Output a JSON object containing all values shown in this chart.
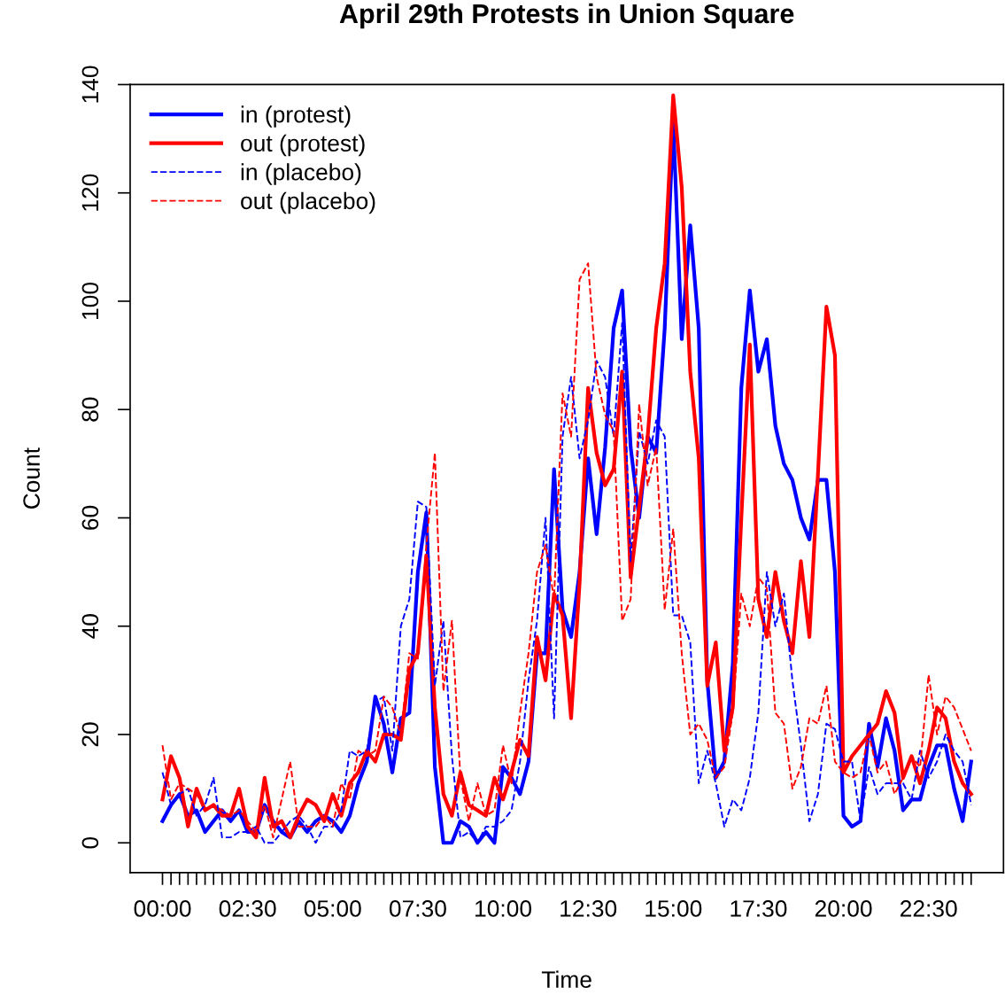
{
  "chart_data": {
    "type": "line",
    "title": "April 29th Protests in Union Square",
    "xlabel": "Time",
    "ylabel": "Count",
    "x": [
      0,
      0.25,
      0.5,
      0.75,
      1,
      1.25,
      1.5,
      1.75,
      2,
      2.25,
      2.5,
      2.75,
      3,
      3.25,
      3.5,
      3.75,
      4,
      4.25,
      4.5,
      4.75,
      5,
      5.25,
      5.5,
      5.75,
      6,
      6.25,
      6.5,
      6.75,
      7,
      7.25,
      7.5,
      7.75,
      8,
      8.25,
      8.5,
      8.75,
      9,
      9.25,
      9.5,
      9.75,
      10,
      10.25,
      10.5,
      10.75,
      11,
      11.25,
      11.5,
      11.75,
      12,
      12.25,
      12.5,
      12.75,
      13,
      13.25,
      13.5,
      13.75,
      14,
      14.25,
      14.5,
      14.75,
      15,
      15.25,
      15.5,
      15.75,
      16,
      16.25,
      16.5,
      16.75,
      17,
      17.25,
      17.5,
      17.75,
      18,
      18.25,
      18.5,
      18.75,
      19,
      19.25,
      19.5,
      19.75,
      20,
      20.25,
      20.5,
      20.75,
      21,
      21.25,
      21.5,
      21.75,
      22,
      22.25,
      22.5,
      22.75,
      23,
      23.25,
      23.5,
      23.75
    ],
    "series": [
      {
        "name": "in (protest)",
        "color": "#0000ff",
        "line_style": "solid",
        "values": [
          4,
          7,
          9,
          5,
          6,
          2,
          4,
          6,
          4,
          6,
          2,
          2,
          7,
          4,
          2,
          1,
          4,
          2,
          4,
          5,
          4,
          2,
          5,
          11,
          15,
          27,
          22,
          13,
          23,
          24,
          50,
          61,
          14,
          0,
          0,
          4,
          3,
          0,
          2,
          0,
          14,
          12,
          9,
          15,
          35,
          35,
          69,
          43,
          38,
          50,
          71,
          57,
          73,
          95,
          102,
          73,
          60,
          75,
          72,
          95,
          133,
          93,
          114,
          95,
          30,
          12,
          15,
          33,
          84,
          102,
          87,
          93,
          77,
          70,
          67,
          60,
          56,
          67,
          67,
          50,
          5,
          3,
          4,
          22,
          14,
          23,
          17,
          6,
          8,
          8,
          14,
          18,
          18,
          10,
          4,
          15
        ]
      },
      {
        "name": "out (protest)",
        "color": "#ff0000",
        "line_style": "solid",
        "values": [
          8,
          16,
          12,
          3,
          10,
          6,
          7,
          5,
          5,
          10,
          3,
          1,
          12,
          3,
          4,
          1,
          5,
          8,
          7,
          4,
          9,
          5,
          11,
          13,
          17,
          15,
          20,
          20,
          19,
          32,
          35,
          53,
          25,
          9,
          5,
          13,
          7,
          6,
          5,
          12,
          8,
          13,
          19,
          16,
          38,
          30,
          46,
          42,
          23,
          48,
          84,
          72,
          66,
          69,
          87,
          49,
          62,
          75,
          95,
          107,
          138,
          121,
          87,
          71,
          29,
          37,
          17,
          25,
          60,
          92,
          45,
          38,
          50,
          41,
          35,
          52,
          38,
          68,
          99,
          90,
          13,
          16,
          18,
          20,
          22,
          28,
          24,
          12,
          16,
          11,
          17,
          25,
          23,
          15,
          11,
          9
        ]
      },
      {
        "name": "in (placebo)",
        "color": "#0000ff",
        "line_style": "dashed",
        "values": [
          13,
          7,
          9,
          10,
          5,
          7,
          12,
          1,
          1,
          2,
          2,
          3,
          0,
          0,
          2,
          4,
          5,
          3,
          0,
          3,
          3,
          6,
          17,
          16,
          17,
          26,
          27,
          17,
          40,
          45,
          63,
          62,
          29,
          41,
          16,
          1,
          2,
          0,
          3,
          3,
          4,
          6,
          15,
          30,
          41,
          60,
          23,
          75,
          86,
          71,
          78,
          89,
          86,
          75,
          96,
          52,
          76,
          70,
          78,
          75,
          42,
          42,
          37,
          11,
          17,
          11,
          3,
          8,
          6,
          12,
          24,
          50,
          40,
          46,
          30,
          18,
          4,
          9,
          22,
          21,
          15,
          15,
          4,
          14,
          9,
          11,
          11,
          11,
          8,
          17,
          12,
          15,
          20,
          17,
          15,
          7
        ]
      },
      {
        "name": "out (placebo)",
        "color": "#ff0000",
        "line_style": "dashed",
        "values": [
          18,
          8,
          11,
          10,
          9,
          6,
          7,
          6,
          5,
          6,
          4,
          2,
          7,
          1,
          8,
          15,
          3,
          3,
          3,
          5,
          3,
          11,
          8,
          17,
          16,
          17,
          27,
          25,
          20,
          35,
          34,
          55,
          72,
          28,
          41,
          12,
          4,
          11,
          5,
          6,
          18,
          11,
          24,
          35,
          50,
          55,
          45,
          83,
          75,
          104,
          107,
          86,
          79,
          76,
          41,
          45,
          81,
          66,
          73,
          43,
          58,
          35,
          20,
          22,
          19,
          12,
          14,
          24,
          46,
          40,
          49,
          47,
          24,
          22,
          10,
          14,
          23,
          22,
          29,
          15,
          13,
          12,
          13,
          20,
          13,
          15,
          9,
          12,
          16,
          14,
          31,
          20,
          27,
          25,
          21,
          17
        ]
      }
    ],
    "xlim": [
      -0.95,
      24.7
    ],
    "ylim": [
      -5.5,
      140
    ],
    "xticks": [
      {
        "value": 0,
        "label": "00:00"
      },
      {
        "value": 0.25,
        "label": null
      },
      {
        "value": 0.5,
        "label": null
      },
      {
        "value": 0.75,
        "label": null
      },
      {
        "value": 1,
        "label": null
      },
      {
        "value": 1.25,
        "label": null
      },
      {
        "value": 1.5,
        "label": null
      },
      {
        "value": 1.75,
        "label": null
      },
      {
        "value": 2,
        "label": null
      },
      {
        "value": 2.25,
        "label": null
      },
      {
        "value": 2.5,
        "label": "02:30"
      },
      {
        "value": 2.75,
        "label": null
      },
      {
        "value": 3,
        "label": null
      },
      {
        "value": 3.25,
        "label": null
      },
      {
        "value": 3.5,
        "label": null
      },
      {
        "value": 3.75,
        "label": null
      },
      {
        "value": 4,
        "label": null
      },
      {
        "value": 4.25,
        "label": null
      },
      {
        "value": 4.5,
        "label": null
      },
      {
        "value": 4.75,
        "label": null
      },
      {
        "value": 5,
        "label": "05:00"
      },
      {
        "value": 5.25,
        "label": null
      },
      {
        "value": 5.5,
        "label": null
      },
      {
        "value": 5.75,
        "label": null
      },
      {
        "value": 6,
        "label": null
      },
      {
        "value": 6.25,
        "label": null
      },
      {
        "value": 6.5,
        "label": null
      },
      {
        "value": 6.75,
        "label": null
      },
      {
        "value": 7,
        "label": null
      },
      {
        "value": 7.25,
        "label": null
      },
      {
        "value": 7.5,
        "label": "07:30"
      },
      {
        "value": 7.75,
        "label": null
      },
      {
        "value": 8,
        "label": null
      },
      {
        "value": 8.25,
        "label": null
      },
      {
        "value": 8.5,
        "label": null
      },
      {
        "value": 8.75,
        "label": null
      },
      {
        "value": 9,
        "label": null
      },
      {
        "value": 9.25,
        "label": null
      },
      {
        "value": 9.5,
        "label": null
      },
      {
        "value": 9.75,
        "label": null
      },
      {
        "value": 10,
        "label": "10:00"
      },
      {
        "value": 10.25,
        "label": null
      },
      {
        "value": 10.5,
        "label": null
      },
      {
        "value": 10.75,
        "label": null
      },
      {
        "value": 11,
        "label": null
      },
      {
        "value": 11.25,
        "label": null
      },
      {
        "value": 11.5,
        "label": null
      },
      {
        "value": 11.75,
        "label": null
      },
      {
        "value": 12,
        "label": null
      },
      {
        "value": 12.25,
        "label": null
      },
      {
        "value": 12.5,
        "label": "12:30"
      },
      {
        "value": 12.75,
        "label": null
      },
      {
        "value": 13,
        "label": null
      },
      {
        "value": 13.25,
        "label": null
      },
      {
        "value": 13.5,
        "label": null
      },
      {
        "value": 13.75,
        "label": null
      },
      {
        "value": 14,
        "label": null
      },
      {
        "value": 14.25,
        "label": null
      },
      {
        "value": 14.5,
        "label": null
      },
      {
        "value": 14.75,
        "label": null
      },
      {
        "value": 15,
        "label": "15:00"
      },
      {
        "value": 15.25,
        "label": null
      },
      {
        "value": 15.5,
        "label": null
      },
      {
        "value": 15.75,
        "label": null
      },
      {
        "value": 16,
        "label": null
      },
      {
        "value": 16.25,
        "label": null
      },
      {
        "value": 16.5,
        "label": null
      },
      {
        "value": 16.75,
        "label": null
      },
      {
        "value": 17,
        "label": null
      },
      {
        "value": 17.25,
        "label": null
      },
      {
        "value": 17.5,
        "label": "17:30"
      },
      {
        "value": 17.75,
        "label": null
      },
      {
        "value": 18,
        "label": null
      },
      {
        "value": 18.25,
        "label": null
      },
      {
        "value": 18.5,
        "label": null
      },
      {
        "value": 18.75,
        "label": null
      },
      {
        "value": 19,
        "label": null
      },
      {
        "value": 19.25,
        "label": null
      },
      {
        "value": 19.5,
        "label": null
      },
      {
        "value": 19.75,
        "label": null
      },
      {
        "value": 20,
        "label": "20:00"
      },
      {
        "value": 20.25,
        "label": null
      },
      {
        "value": 20.5,
        "label": null
      },
      {
        "value": 20.75,
        "label": null
      },
      {
        "value": 21,
        "label": null
      },
      {
        "value": 21.25,
        "label": null
      },
      {
        "value": 21.5,
        "label": null
      },
      {
        "value": 21.75,
        "label": null
      },
      {
        "value": 22,
        "label": null
      },
      {
        "value": 22.25,
        "label": null
      },
      {
        "value": 22.5,
        "label": "22:30"
      },
      {
        "value": 22.75,
        "label": null
      },
      {
        "value": 23,
        "label": null
      },
      {
        "value": 23.25,
        "label": null
      },
      {
        "value": 23.5,
        "label": null
      },
      {
        "value": 23.75,
        "label": null
      }
    ],
    "yticks": [
      0,
      20,
      40,
      60,
      80,
      100,
      120,
      140
    ],
    "grid": false,
    "legend": "top left",
    "marker": "none"
  }
}
